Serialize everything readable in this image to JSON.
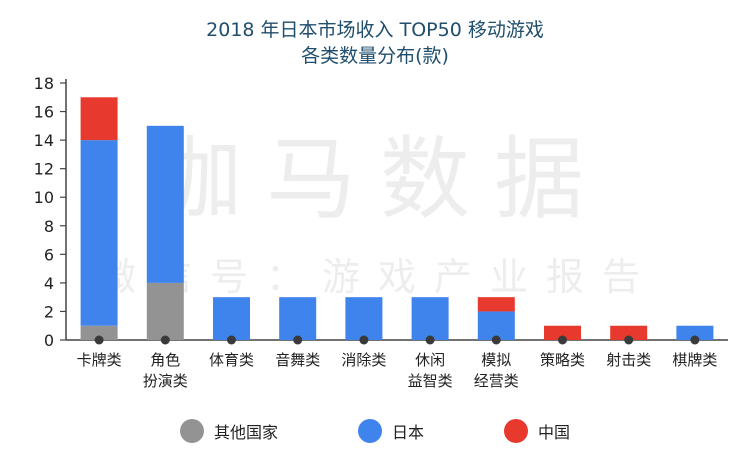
{
  "chart_data": {
    "type": "bar",
    "stacked": true,
    "title": "2018 年日本市场收入 TOP50 移动游戏",
    "subtitle": "各类数量分布(款)",
    "xlabel": "",
    "ylabel": "",
    "ylim": [
      0,
      18
    ],
    "yticks": [
      0,
      2,
      4,
      6,
      8,
      10,
      12,
      14,
      16,
      18
    ],
    "grid": false,
    "legend_position": "bottom",
    "categories": [
      "卡牌类",
      "角色扮演类",
      "体育类",
      "音舞类",
      "消除类",
      "休闲益智类",
      "模拟经营类",
      "策略类",
      "射击类",
      "棋牌类"
    ],
    "category_lines": [
      [
        "卡牌类"
      ],
      [
        "角色",
        "扮演类"
      ],
      [
        "体育类"
      ],
      [
        "音舞类"
      ],
      [
        "消除类"
      ],
      [
        "休闲",
        "益智类"
      ],
      [
        "模拟",
        "经营类"
      ],
      [
        "策略类"
      ],
      [
        "射击类"
      ],
      [
        "棋牌类"
      ]
    ],
    "series": [
      {
        "name": "其他国家",
        "color": "#939393",
        "values": [
          1,
          4,
          0,
          0,
          0,
          0,
          0,
          0,
          0,
          0
        ]
      },
      {
        "name": "日本",
        "color": "#3e84ec",
        "values": [
          13,
          11,
          3,
          3,
          3,
          3,
          2,
          0,
          0,
          1
        ]
      },
      {
        "name": "中国",
        "color": "#e8392f",
        "values": [
          3,
          0,
          0,
          0,
          0,
          0,
          1,
          1,
          1,
          0
        ]
      }
    ]
  },
  "watermark": {
    "main": "伽马数据",
    "sub": "微信号：游戏产业报告"
  }
}
